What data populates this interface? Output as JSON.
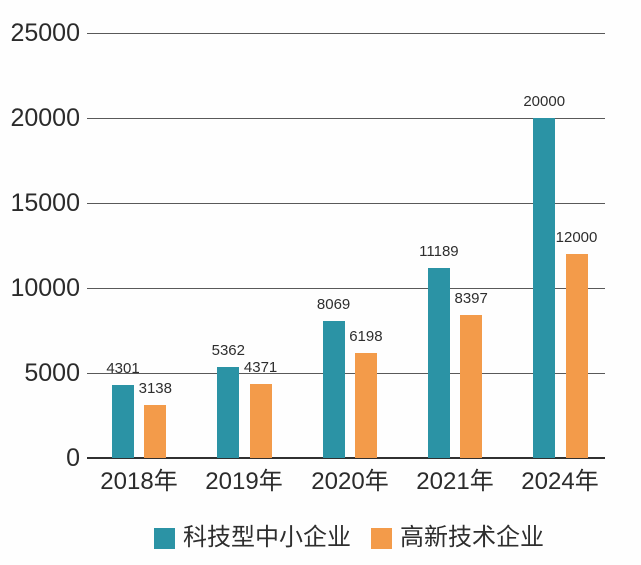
{
  "chart_data": {
    "type": "bar",
    "title": "",
    "xlabel": "",
    "ylabel": "",
    "categories": [
      "2018年",
      "2019年",
      "2020年",
      "2021年",
      "2024年"
    ],
    "series": [
      {
        "name": "科技型中小企业",
        "color": "#2B93A5",
        "values": [
          4301,
          5362,
          8069,
          11189,
          20000
        ]
      },
      {
        "name": "高新技术企业",
        "color": "#F39B4A",
        "values": [
          3138,
          4371,
          6198,
          8397,
          12000
        ]
      }
    ],
    "yticks": [
      0,
      5000,
      10000,
      15000,
      20000,
      25000
    ],
    "ylim": [
      0,
      25000
    ],
    "grid": true,
    "legend_position": "bottom",
    "colors": {
      "axis_text": "#2B2B2B",
      "value_label_text": "#2E2E2E",
      "gridline": "#595959",
      "baseline": "#303030",
      "background": "#FEFEFE"
    }
  }
}
